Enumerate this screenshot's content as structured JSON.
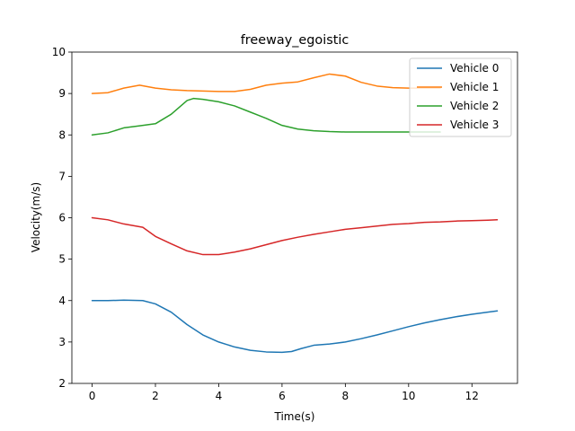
{
  "chart_data": {
    "type": "line",
    "title": "freeway_egoistic",
    "xlabel": "Time(s)",
    "ylabel": "Velocity(m/s)",
    "xlim": [
      -0.64,
      13.44
    ],
    "ylim": [
      2,
      10
    ],
    "xticks": [
      "0",
      "2",
      "4",
      "6",
      "8",
      "10",
      "12"
    ],
    "yticks": [
      "2",
      "3",
      "4",
      "5",
      "6",
      "7",
      "8",
      "9",
      "10"
    ],
    "grid": false,
    "legend_position": "top-right",
    "series": [
      {
        "name": "Vehicle 0",
        "color": "#1f77b4",
        "x": [
          0,
          0.5,
          1.0,
          1.6,
          2.0,
          2.5,
          3.0,
          3.5,
          4.0,
          4.5,
          5.0,
          5.5,
          6.0,
          6.3,
          6.6,
          7.0,
          7.5,
          8.0,
          8.5,
          9.0,
          9.5,
          10.0,
          10.5,
          11.0,
          11.5,
          12.0,
          12.5,
          12.8
        ],
        "values": [
          4.0,
          4.0,
          4.01,
          4.0,
          3.92,
          3.72,
          3.42,
          3.17,
          3.0,
          2.88,
          2.8,
          2.76,
          2.75,
          2.77,
          2.84,
          2.92,
          2.95,
          3.0,
          3.08,
          3.17,
          3.27,
          3.37,
          3.46,
          3.54,
          3.61,
          3.67,
          3.72,
          3.75
        ]
      },
      {
        "name": "Vehicle 1",
        "color": "#ff7f0e",
        "x": [
          0,
          0.5,
          1.0,
          1.5,
          2.0,
          2.5,
          3.0,
          3.5,
          4.0,
          4.5,
          5.0,
          5.5,
          6.0,
          6.5,
          7.0,
          7.5,
          8.0,
          8.5,
          9.0,
          9.5,
          10.0,
          10.5,
          11.0
        ],
        "values": [
          9.0,
          9.02,
          9.13,
          9.2,
          9.13,
          9.09,
          9.07,
          9.06,
          9.05,
          9.05,
          9.1,
          9.2,
          9.25,
          9.28,
          9.38,
          9.47,
          9.42,
          9.27,
          9.18,
          9.14,
          9.13,
          9.13,
          9.13
        ]
      },
      {
        "name": "Vehicle 2",
        "color": "#2ca02c",
        "x": [
          0,
          0.5,
          1.0,
          1.5,
          2.0,
          2.5,
          3.0,
          3.2,
          3.5,
          4.0,
          4.5,
          5.0,
          5.5,
          6.0,
          6.5,
          7.0,
          7.5,
          8.0,
          8.5,
          9.0,
          9.5,
          10.0,
          10.5,
          11.0
        ],
        "values": [
          8.0,
          8.05,
          8.17,
          8.22,
          8.27,
          8.5,
          8.83,
          8.88,
          8.86,
          8.8,
          8.7,
          8.55,
          8.4,
          8.23,
          8.14,
          8.1,
          8.08,
          8.07,
          8.07,
          8.07,
          8.07,
          8.07,
          8.07,
          8.07
        ]
      },
      {
        "name": "Vehicle 3",
        "color": "#d62728",
        "x": [
          0,
          0.5,
          1.0,
          1.6,
          2.0,
          2.5,
          3.0,
          3.5,
          4.0,
          4.5,
          5.0,
          5.5,
          6.0,
          6.5,
          7.0,
          7.5,
          8.0,
          8.5,
          9.0,
          9.5,
          10.0,
          10.5,
          11.0,
          11.5,
          12.0,
          12.5,
          12.8
        ],
        "values": [
          6.0,
          5.95,
          5.85,
          5.77,
          5.55,
          5.37,
          5.2,
          5.11,
          5.11,
          5.17,
          5.25,
          5.35,
          5.45,
          5.53,
          5.6,
          5.66,
          5.72,
          5.76,
          5.8,
          5.84,
          5.86,
          5.89,
          5.9,
          5.92,
          5.93,
          5.94,
          5.95
        ]
      }
    ]
  }
}
